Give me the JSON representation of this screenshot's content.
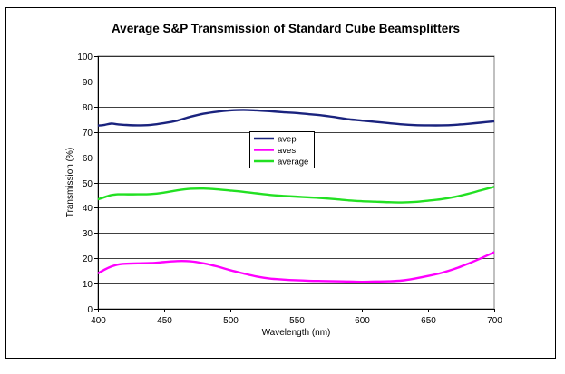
{
  "chart_data": {
    "type": "line",
    "title": "Average S&P Transmission of Standard Cube Beamsplitters",
    "xlabel": "Wavelength (nm)",
    "ylabel": "Transmission (%)",
    "xlim": [
      400,
      700
    ],
    "ylim": [
      0,
      100
    ],
    "xticks": [
      400,
      450,
      500,
      550,
      600,
      650,
      700
    ],
    "yticks": [
      0,
      10,
      20,
      30,
      40,
      50,
      60,
      70,
      80,
      90,
      100
    ],
    "grid": "horizontal",
    "legend_placement": "center",
    "series": [
      {
        "name": "avep",
        "color": "#1a237e",
        "x": [
          400,
          405,
          410,
          415,
          420,
          430,
          440,
          450,
          460,
          470,
          480,
          490,
          500,
          510,
          520,
          530,
          540,
          550,
          560,
          570,
          580,
          590,
          600,
          610,
          620,
          630,
          640,
          650,
          660,
          670,
          680,
          690,
          700
        ],
        "y": [
          72.5,
          72.8,
          73.3,
          73.0,
          72.8,
          72.6,
          72.8,
          73.5,
          74.5,
          76.0,
          77.2,
          78.0,
          78.5,
          78.7,
          78.5,
          78.2,
          77.8,
          77.5,
          77.0,
          76.5,
          75.8,
          75.0,
          74.5,
          74.0,
          73.5,
          73.0,
          72.7,
          72.6,
          72.6,
          72.8,
          73.2,
          73.7,
          74.2
        ]
      },
      {
        "name": "aves",
        "color": "#ff00ff",
        "x": [
          400,
          405,
          410,
          415,
          420,
          430,
          440,
          450,
          460,
          470,
          480,
          490,
          500,
          510,
          520,
          530,
          540,
          550,
          560,
          570,
          580,
          590,
          600,
          610,
          620,
          630,
          640,
          650,
          660,
          670,
          680,
          690,
          700
        ],
        "y": [
          14.0,
          15.5,
          16.7,
          17.5,
          17.8,
          18.0,
          18.1,
          18.5,
          18.9,
          18.8,
          18.0,
          16.8,
          15.3,
          14.0,
          12.8,
          12.0,
          11.6,
          11.3,
          11.1,
          11.0,
          10.9,
          10.8,
          10.7,
          10.8,
          10.9,
          11.2,
          12.0,
          13.0,
          14.2,
          15.8,
          17.8,
          20.0,
          22.4
        ]
      },
      {
        "name": "average",
        "color": "#22e022",
        "x": [
          400,
          405,
          410,
          415,
          420,
          430,
          440,
          450,
          460,
          470,
          480,
          490,
          500,
          510,
          520,
          530,
          540,
          550,
          560,
          570,
          580,
          590,
          600,
          610,
          620,
          630,
          640,
          650,
          660,
          670,
          680,
          690,
          700
        ],
        "y": [
          43.3,
          44.2,
          45.0,
          45.3,
          45.3,
          45.3,
          45.4,
          46.0,
          46.9,
          47.5,
          47.6,
          47.3,
          46.8,
          46.3,
          45.7,
          45.1,
          44.7,
          44.4,
          44.1,
          43.8,
          43.4,
          42.9,
          42.6,
          42.4,
          42.2,
          42.1,
          42.3,
          42.8,
          43.4,
          44.3,
          45.5,
          46.9,
          48.3
        ]
      }
    ]
  }
}
